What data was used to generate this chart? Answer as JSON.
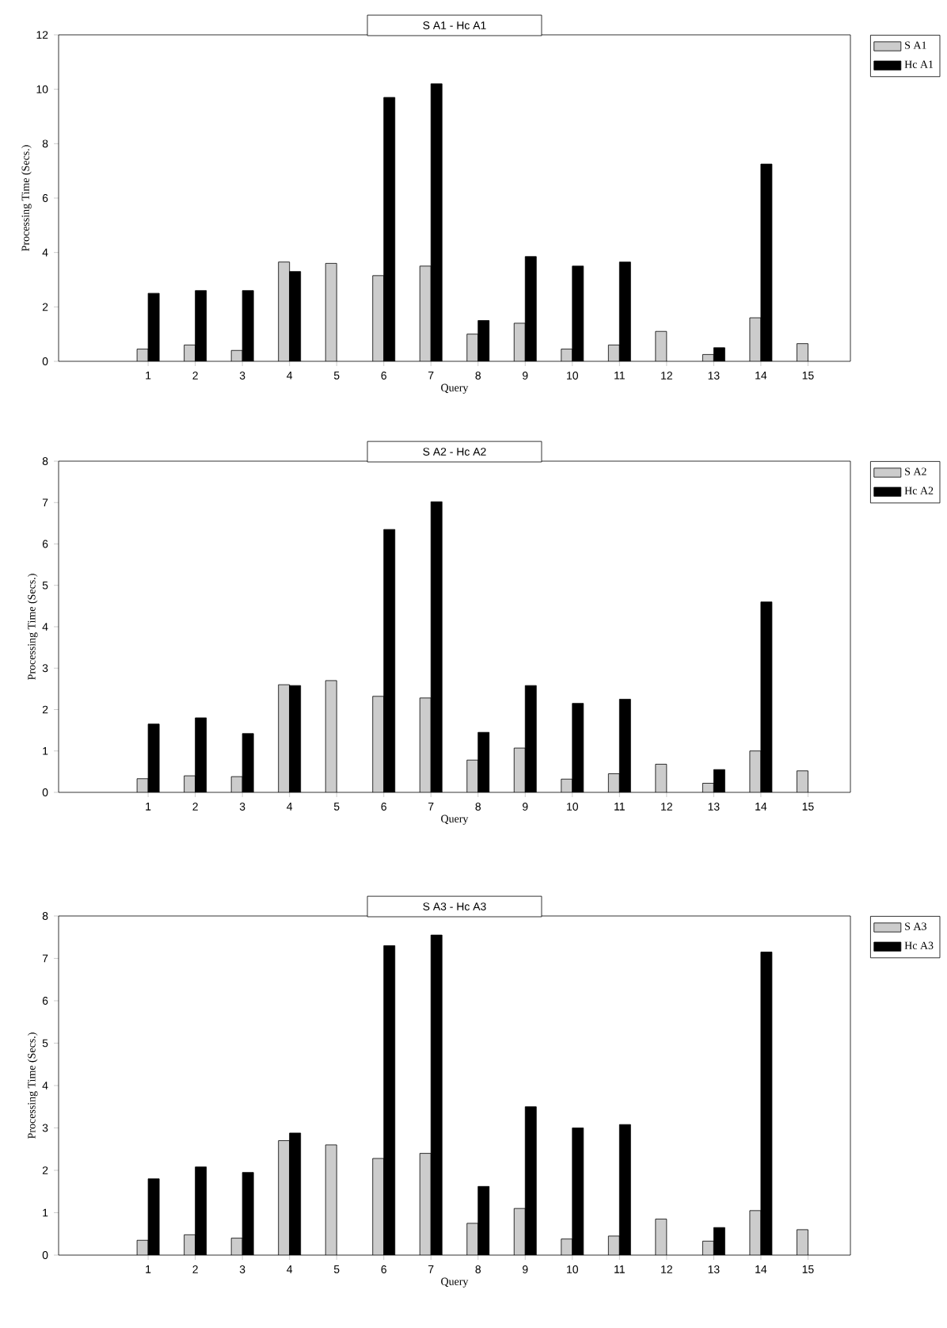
{
  "chart_data": [
    {
      "type": "bar",
      "title": "S A1 - Hc A1",
      "xlabel": "Query",
      "ylabel": "Processing Time (Secs.)",
      "categories": [
        "1",
        "2",
        "3",
        "4",
        "5",
        "6",
        "7",
        "8",
        "9",
        "10",
        "11",
        "12",
        "13",
        "14",
        "15"
      ],
      "ylim": [
        0,
        12
      ],
      "yticks": [
        0,
        2,
        4,
        6,
        8,
        10,
        12
      ],
      "legend": "top right",
      "series": [
        {
          "name": "S A1",
          "color": "#cccccc",
          "values": [
            0.45,
            0.6,
            0.4,
            3.65,
            3.6,
            3.15,
            3.5,
            1.0,
            1.4,
            0.45,
            0.6,
            1.1,
            0.25,
            1.6,
            0.65
          ]
        },
        {
          "name": "Hc A1",
          "color": "#000000",
          "values": [
            2.5,
            2.6,
            2.6,
            3.3,
            null,
            9.7,
            10.2,
            1.5,
            3.85,
            3.5,
            3.65,
            null,
            0.5,
            7.25,
            null
          ]
        }
      ]
    },
    {
      "type": "bar",
      "title": "S A2 - Hc A2",
      "xlabel": "Query",
      "ylabel": "Processing Time (Secs.)",
      "categories": [
        "1",
        "2",
        "3",
        "4",
        "5",
        "6",
        "7",
        "8",
        "9",
        "10",
        "11",
        "12",
        "13",
        "14",
        "15"
      ],
      "ylim": [
        0,
        8
      ],
      "yticks": [
        0,
        1,
        2,
        3,
        4,
        5,
        6,
        7,
        8
      ],
      "legend": "top right",
      "series": [
        {
          "name": "S A2",
          "color": "#cccccc",
          "values": [
            0.33,
            0.4,
            0.38,
            2.6,
            2.7,
            2.32,
            2.28,
            0.78,
            1.07,
            0.32,
            0.45,
            0.68,
            0.22,
            1.0,
            0.52
          ]
        },
        {
          "name": "Hc A2",
          "color": "#000000",
          "values": [
            1.65,
            1.8,
            1.42,
            2.58,
            null,
            6.35,
            7.02,
            1.45,
            2.58,
            2.15,
            2.25,
            null,
            0.55,
            4.6,
            null
          ]
        }
      ]
    },
    {
      "type": "bar",
      "title": "S A3 - Hc A3",
      "xlabel": "Query",
      "ylabel": "Processing Time (Secs.)",
      "categories": [
        "1",
        "2",
        "3",
        "4",
        "5",
        "6",
        "7",
        "8",
        "9",
        "10",
        "11",
        "12",
        "13",
        "14",
        "15"
      ],
      "ylim": [
        0,
        8
      ],
      "yticks": [
        0,
        1,
        2,
        3,
        4,
        5,
        6,
        7,
        8
      ],
      "legend": "top right",
      "series": [
        {
          "name": "S A3",
          "color": "#cccccc",
          "values": [
            0.35,
            0.48,
            0.4,
            2.7,
            2.6,
            2.28,
            2.4,
            0.75,
            1.1,
            0.38,
            0.45,
            0.85,
            0.33,
            1.05,
            0.6
          ]
        },
        {
          "name": "Hc A3",
          "color": "#000000",
          "values": [
            1.8,
            2.08,
            1.95,
            2.88,
            null,
            7.3,
            7.55,
            1.62,
            3.5,
            3.0,
            3.08,
            null,
            0.65,
            7.15,
            null
          ]
        }
      ]
    }
  ]
}
